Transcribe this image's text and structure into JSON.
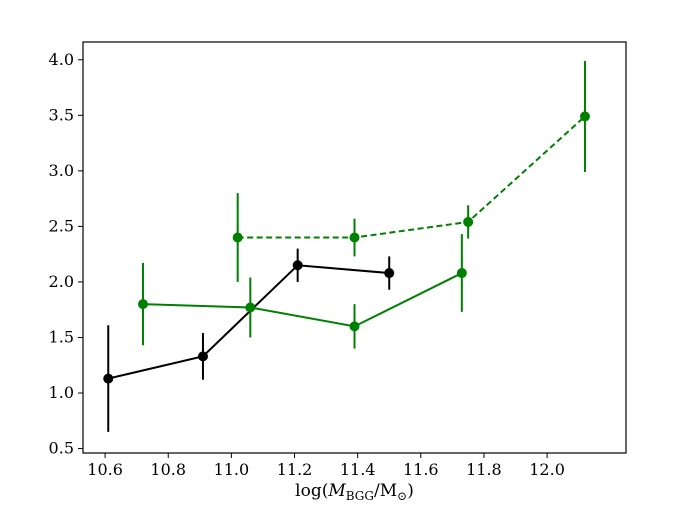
{
  "chart_data": {
    "type": "line",
    "title": "",
    "xlabel": "log(M_BGG/M_⊙)",
    "ylabel": "",
    "xlim": [
      10.53,
      12.25
    ],
    "ylim": [
      0.46,
      4.16
    ],
    "xticks": [
      "10.6",
      "10.8",
      "11.0",
      "11.2",
      "11.4",
      "11.6",
      "11.8",
      "12.0"
    ],
    "yticks": [
      "0.5",
      "1.0",
      "1.5",
      "2.0",
      "2.5",
      "3.0",
      "3.5",
      "4.0"
    ],
    "grid": false,
    "legend": "none",
    "series": [
      {
        "color": "#000000",
        "linestyle": "solid",
        "points": [
          {
            "x": 10.61,
            "y": 1.13,
            "yerr_lo": 0.48,
            "yerr_hi": 0.48
          },
          {
            "x": 10.91,
            "y": 1.33,
            "yerr_lo": 0.21,
            "yerr_hi": 0.21
          },
          {
            "x": 11.21,
            "y": 2.15,
            "yerr_lo": 0.15,
            "yerr_hi": 0.15
          },
          {
            "x": 11.5,
            "y": 2.08,
            "yerr_lo": 0.15,
            "yerr_hi": 0.15
          }
        ]
      },
      {
        "color": "#008000",
        "linestyle": "solid",
        "points": [
          {
            "x": 10.72,
            "y": 1.8,
            "yerr_lo": 0.37,
            "yerr_hi": 0.37
          },
          {
            "x": 11.06,
            "y": 1.77,
            "yerr_lo": 0.27,
            "yerr_hi": 0.27
          },
          {
            "x": 11.39,
            "y": 1.6,
            "yerr_lo": 0.2,
            "yerr_hi": 0.2
          },
          {
            "x": 11.73,
            "y": 2.08,
            "yerr_lo": 0.35,
            "yerr_hi": 0.35
          }
        ]
      },
      {
        "color": "#008000",
        "linestyle": "dashed",
        "points": [
          {
            "x": 11.02,
            "y": 2.4,
            "yerr_lo": 0.4,
            "yerr_hi": 0.4
          },
          {
            "x": 11.39,
            "y": 2.4,
            "yerr_lo": 0.17,
            "yerr_hi": 0.17
          },
          {
            "x": 11.75,
            "y": 2.54,
            "yerr_lo": 0.15,
            "yerr_hi": 0.15
          },
          {
            "x": 12.12,
            "y": 3.49,
            "yerr_lo": 0.5,
            "yerr_hi": 0.5
          }
        ]
      }
    ]
  }
}
